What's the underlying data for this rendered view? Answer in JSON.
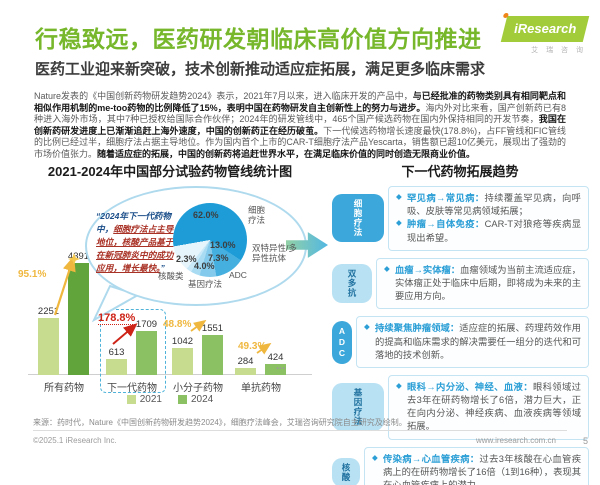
{
  "header": {
    "title": "行稳致远，医药研发朝临床高价值方向推进",
    "subtitle": "医药工业迎来新突破，技术创新推动适应症拓展，满足更多临床需求",
    "logo_text": "iResearch",
    "logo_cn": "艾 瑞 咨 询"
  },
  "intro": {
    "segments": [
      {
        "text": "Nature发表的《中国创新药物研发趋势2024》表示，2021年7月以来，进入临床开发的产品中，",
        "bold": false
      },
      {
        "text": "与已经批准的药物类别具有相同靶点和相似作用机制的me-too药物的比例降低了15%，表明中国在药物研发自主创新性上的努力与进步。",
        "bold": true
      },
      {
        "text": "海内外对比来看，国产创新药已有8种进入海外市场，其中7种已授权给国际合作伙伴；2024年的研发管线中，465个国产候选药物在国内外保持相同的开发节奏，",
        "bold": false
      },
      {
        "text": "我国在创新药研发进度上已渐渐追赶上海外速度，中国的创新药正在经历破茧。",
        "bold": true
      },
      {
        "text": "下一代候选药物增长速度最快(178.8%)，占FF管线和FIC管线的比例已经过半，细胞疗法占据主导地位。作为国内首个上市的CAR-T细胞疗法产品Yescarta，销售额已超10亿美元，展现出了强劲的市场价值张力。",
        "bold": false
      },
      {
        "text": "随着适应症的拓展，中国的创新药将追赶世界水平，在满足临床价值的同时创造无限商业价值。",
        "bold": true
      }
    ]
  },
  "left_chart": {
    "title": "2021-2024年中国部分试验药物管线统计图",
    "bubble": {
      "prefix": "“2024年下一代药物中，",
      "highlight": "细胞疗法占主导地位，核酸产品基于在新冠肺炎中的成功应用，增长最快。",
      "suffix": "”"
    },
    "more_marker": "..."
  },
  "chart_data": [
    {
      "type": "bar",
      "title": "2021-2024年中国部分试验药物管线统计图",
      "categories": [
        "所有药物",
        "下一代药物",
        "小分子药物",
        "单抗药物"
      ],
      "series": [
        {
          "name": "2021",
          "values": [
            2251,
            613,
            1042,
            284
          ]
        },
        {
          "name": "2024",
          "values": [
            4391,
            1709,
            1551,
            424
          ]
        }
      ],
      "growth": [
        "95.1%",
        "178.8%",
        "48.8%",
        "49.3%"
      ],
      "highlight_category": "下一代药物",
      "ymax": 4391,
      "legend_position": "bottom",
      "grid": false
    },
    {
      "type": "pie",
      "labels": [
        "细胞疗法",
        "双特异性/多异性抗体",
        "ADC",
        "基因疗法",
        "核酸类"
      ],
      "values": [
        62.0,
        13.0,
        7.3,
        4.0,
        2.3
      ],
      "display": [
        "62.0%",
        "13.0%",
        "7.3%",
        "4.0%",
        "2.3%"
      ],
      "unit": "%"
    }
  ],
  "right_panel": {
    "title": "下一代药物拓展趋势",
    "sections": [
      {
        "tag": "细胞疗法",
        "tone": "dark",
        "bullets": [
          {
            "lead": "罕见病→常见病：",
            "body": "持续覆盖罕见病，向呼吸、皮肤等常见病领域拓展；"
          },
          {
            "lead": "肿瘤→自体免疫：",
            "body": "CAR-T对狼疮等疾病显现出希望。"
          }
        ]
      },
      {
        "tag": "双多抗",
        "tone": "light",
        "bullets": [
          {
            "lead": "血瘤→实体瘤：",
            "body": "血瘤领域为当前主流适应症，实体瘤正处于临床中后期，即将成为未来的主要应用方向。"
          }
        ]
      },
      {
        "tag": "ADC",
        "tone": "dark",
        "bullets": [
          {
            "lead": "持续聚焦肿瘤领域：",
            "body": "适应症的拓展、药理药效作用的提高和临床需求的解决需要任一组分的迭代和可落地的技术创新。"
          }
        ]
      },
      {
        "tag": "基因疗法",
        "tone": "light",
        "bullets": [
          {
            "lead": "眼科→内分泌、神经、血液：",
            "body": "眼科领域过去3年在研药物增长了6倍，潜力巨大，正在向内分泌、神经疾病、血液疾病等领域拓展。"
          }
        ]
      },
      {
        "tag": "核酸",
        "tone": "light",
        "bullets": [
          {
            "lead": "传染病→心血管疾病：",
            "body": "过去3年核酸在心血管疾病上的在研药物增长了16倍（1到16种），表现其在心血管疾病上的潜力。"
          }
        ]
      }
    ]
  },
  "footer": {
    "source": "来源：药时代，Nature《中国创新药物研发趋势2024》，细胞疗法峰会，艾瑞咨询研究院自主研究及绘制。",
    "copyright": "©2025.1 iResearch Inc.",
    "website": "www.iresearch.com.cn",
    "page_number": "5"
  },
  "colors": {
    "accent_green": "#76B72B",
    "accent_blue": "#2B9FD6",
    "bar_2021": "#C7DC8E",
    "bar_2024": "#8CC163",
    "bar_2024_all": "#61A43C",
    "growth_yellow": "#EFB73E",
    "highlight_red": "#CE2317",
    "pie": [
      "#1E9CD7",
      "#45AFE0",
      "#83CAEC",
      "#A9DBF2",
      "#C9E9F8",
      "#E6F4FB"
    ],
    "tag_dark": "#3BA7DA",
    "tag_light": "#B8E1F3"
  }
}
